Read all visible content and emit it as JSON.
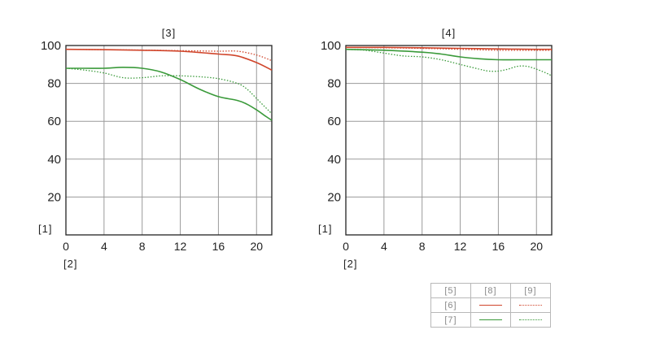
{
  "chart_data": [
    {
      "type": "line",
      "title": "[3]",
      "xlabel": "[2]",
      "ylabel": "[1]",
      "xlim": [
        0,
        21.6
      ],
      "ylim": [
        0,
        100
      ],
      "xticks": [
        0,
        4,
        8,
        12,
        16,
        20
      ],
      "yticks": [
        20,
        40,
        60,
        80,
        100
      ],
      "grid": true,
      "series": [
        {
          "key": "6-8",
          "color": "#d0452b",
          "style": "solid",
          "x": [
            0,
            4,
            8,
            12,
            16,
            18,
            20,
            21.6
          ],
          "y": [
            98,
            97.8,
            97.5,
            97,
            95.5,
            94.5,
            91,
            87
          ]
        },
        {
          "key": "6-9",
          "color": "#d0452b",
          "style": "dotted",
          "x": [
            0,
            4,
            8,
            12,
            16,
            18,
            20,
            21.6
          ],
          "y": [
            98,
            97.8,
            97.6,
            97.3,
            97,
            97,
            95,
            92
          ]
        },
        {
          "key": "7-8",
          "color": "#3a9a3a",
          "style": "solid",
          "x": [
            0,
            2,
            4,
            6,
            8,
            10,
            12,
            14,
            16,
            18,
            19,
            20,
            21,
            21.6
          ],
          "y": [
            88,
            88,
            88,
            88.5,
            88,
            86,
            82,
            77,
            73,
            71,
            69,
            66,
            62.5,
            60.5
          ]
        },
        {
          "key": "7-9",
          "color": "#3a9a3a",
          "style": "dotted",
          "x": [
            0,
            2,
            4,
            6,
            8,
            10,
            12,
            14,
            16,
            18,
            19,
            20,
            21,
            21.6
          ],
          "y": [
            88,
            87,
            85.5,
            83,
            83,
            84,
            84,
            83.5,
            82.5,
            80,
            77,
            72,
            67,
            64
          ]
        }
      ]
    },
    {
      "type": "line",
      "title": "[4]",
      "xlabel": "[2]",
      "ylabel": "[1]",
      "xlim": [
        0,
        21.6
      ],
      "ylim": [
        0,
        100
      ],
      "xticks": [
        0,
        4,
        8,
        12,
        16,
        20
      ],
      "yticks": [
        20,
        40,
        60,
        80,
        100
      ],
      "grid": true,
      "series": [
        {
          "key": "6-8",
          "color": "#d0452b",
          "style": "solid",
          "x": [
            0,
            4,
            8,
            12,
            16,
            20,
            21.6
          ],
          "y": [
            99,
            99,
            98.8,
            98.5,
            98.2,
            98,
            98
          ]
        },
        {
          "key": "6-9",
          "color": "#d0452b",
          "style": "dotted",
          "x": [
            0,
            4,
            8,
            12,
            16,
            20,
            21.6
          ],
          "y": [
            99,
            98.8,
            98.5,
            98,
            97.5,
            97.5,
            97.5
          ]
        },
        {
          "key": "7-8",
          "color": "#3a9a3a",
          "style": "solid",
          "x": [
            0,
            4,
            8,
            10,
            12,
            14,
            16,
            18,
            20,
            21.6
          ],
          "y": [
            98,
            97.5,
            96.5,
            95.5,
            94,
            93,
            92.5,
            92.5,
            92.5,
            92.5
          ]
        },
        {
          "key": "7-9",
          "color": "#3a9a3a",
          "style": "dotted",
          "x": [
            0,
            2,
            4,
            6,
            8,
            10,
            12,
            14,
            15,
            16,
            17,
            18,
            19,
            20,
            21,
            21.6
          ],
          "y": [
            98,
            97.5,
            96,
            94.5,
            94,
            92.5,
            90,
            87.5,
            86.5,
            86.5,
            87.5,
            89,
            89,
            87.5,
            85.5,
            84
          ]
        }
      ]
    }
  ],
  "legend": {
    "header": [
      "[5]",
      "[8]",
      "[9]"
    ],
    "rows": [
      {
        "label": "[6]",
        "color": "#d0452b"
      },
      {
        "label": "[7]",
        "color": "#3a9a3a"
      }
    ]
  }
}
